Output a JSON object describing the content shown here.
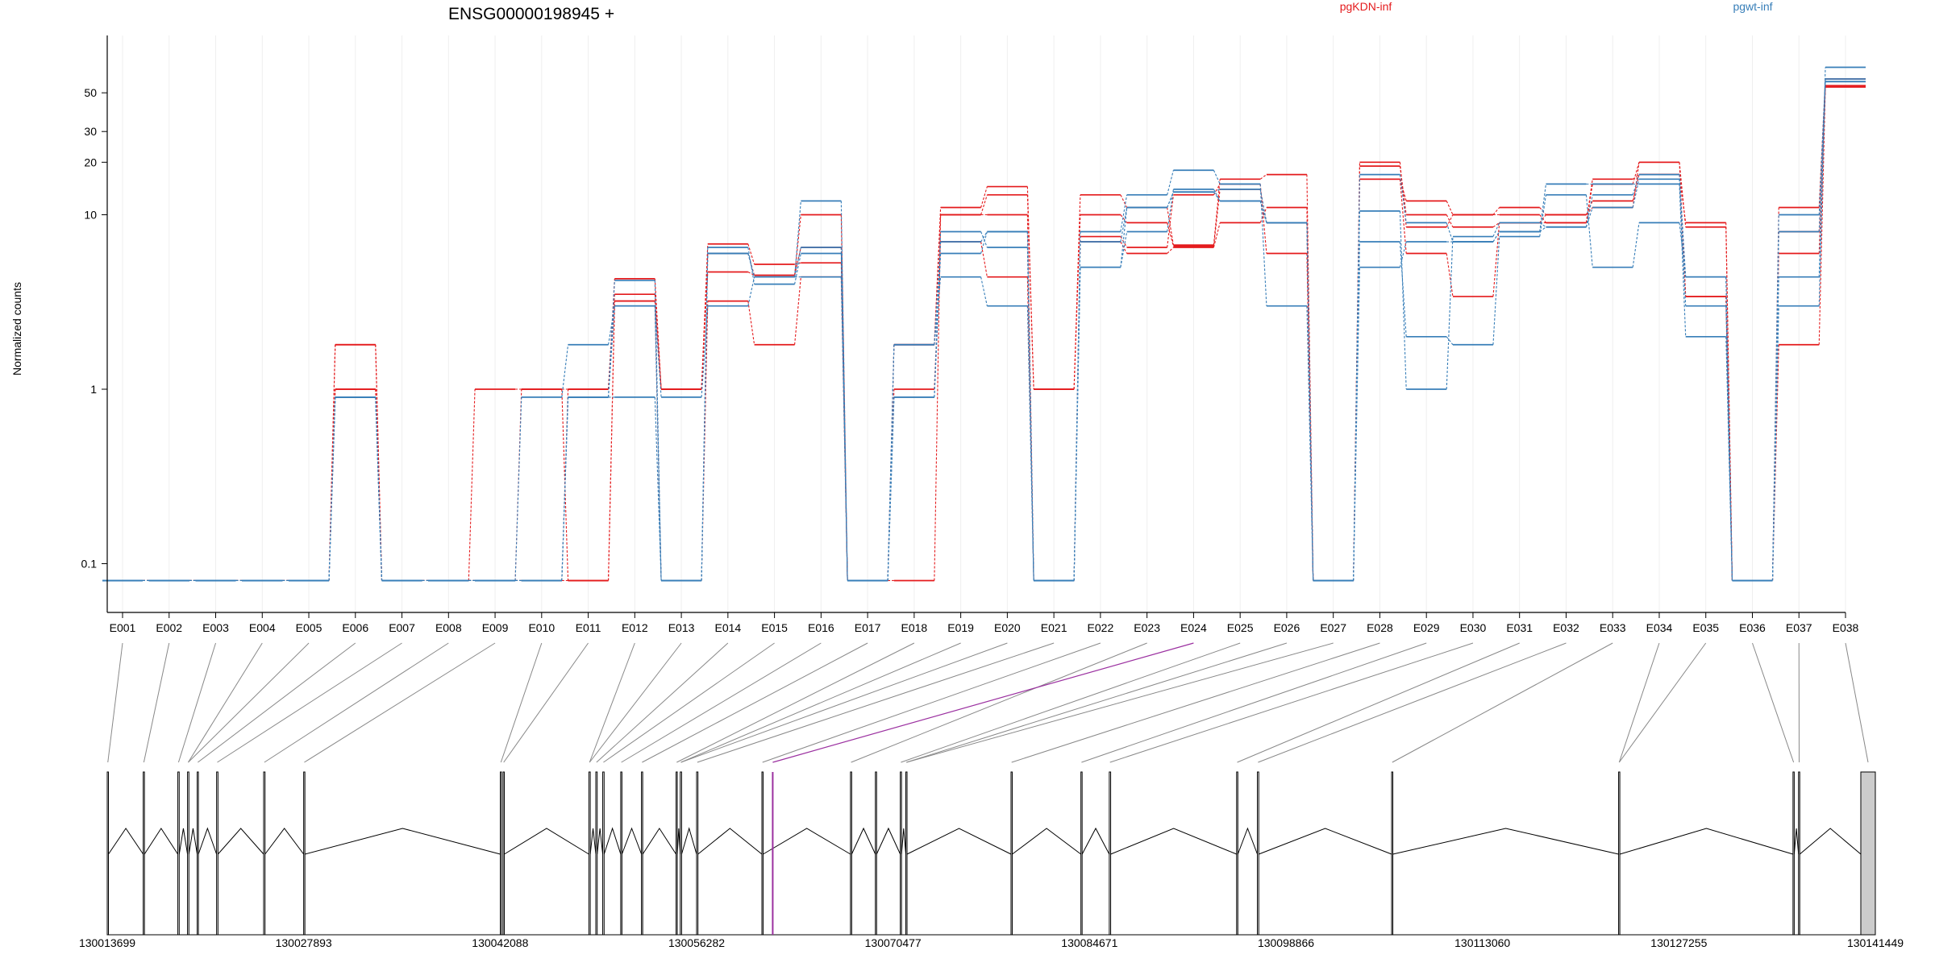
{
  "chart_data": {
    "type": "line",
    "title": "ENSG00000198945 +",
    "ylabel": "Normalized counts",
    "xlabel": "",
    "y_scale": "log",
    "yticks": [
      "0.1",
      "1",
      "10",
      "20",
      "30",
      "50"
    ],
    "ytick_values": [
      0.1,
      1,
      10,
      20,
      30,
      50
    ],
    "ylim": [
      0.065,
      100
    ],
    "grid": "vertical",
    "legend_placement": "top-right",
    "colors": {
      "pgKDN-inf": "#e41a1c",
      "pgwt-inf": "#377eb8"
    },
    "categories": [
      "E001",
      "E002",
      "E003",
      "E004",
      "E005",
      "E006",
      "E007",
      "E008",
      "E009",
      "E010",
      "E011",
      "E012",
      "E013",
      "E014",
      "E015",
      "E016",
      "E017",
      "E018",
      "E019",
      "E020",
      "E021",
      "E022",
      "E023",
      "E024",
      "E025",
      "E026",
      "E027",
      "E028",
      "E029",
      "E030",
      "E031",
      "E032",
      "E033",
      "E034",
      "E035",
      "E036",
      "E037",
      "E038"
    ],
    "series": [
      {
        "name": "pgKDN-inf",
        "group": "pgKDN-inf",
        "values": [
          0.08,
          0.08,
          0.08,
          0.08,
          0.08,
          1.8,
          0.08,
          0.08,
          1,
          1,
          1,
          4.3,
          1,
          6.8,
          5.2,
          5.3,
          0.08,
          1.8,
          11,
          14.5,
          1,
          13,
          11,
          6.7,
          16,
          17,
          0.08,
          20,
          8.5,
          10,
          10,
          9,
          15,
          20,
          8.5,
          0.08,
          11,
          60
        ]
      },
      {
        "name": "pgKDN-inf",
        "group": "pgKDN-inf",
        "values": [
          0.08,
          0.08,
          0.08,
          0.08,
          0.08,
          1.8,
          0.08,
          0.08,
          0.08,
          0.08,
          1,
          3.5,
          1,
          4.7,
          4.5,
          10,
          0.08,
          0.08,
          10,
          13,
          1,
          10,
          9,
          6.6,
          14,
          9,
          0.08,
          16,
          12,
          10,
          11,
          10,
          12,
          17,
          3.4,
          0.08,
          8,
          55
        ]
      },
      {
        "name": "pgKDN-inf",
        "group": "pgKDN-inf",
        "values": [
          0.08,
          0.08,
          0.08,
          0.08,
          0.08,
          1,
          0.08,
          0.08,
          0.08,
          0.08,
          0.08,
          3.2,
          0.08,
          3.2,
          1.8,
          4.4,
          0.08,
          1,
          7,
          4.4,
          0.08,
          7.5,
          6.5,
          13,
          15,
          6,
          0.08,
          16,
          6,
          3.4,
          9,
          9,
          16,
          17,
          9,
          0.08,
          6,
          54
        ]
      },
      {
        "name": "pgKDN-inf",
        "group": "pgKDN-inf",
        "values": [
          0.08,
          0.08,
          0.08,
          0.08,
          0.08,
          1,
          0.08,
          0.08,
          0.08,
          1,
          0.08,
          3.2,
          1,
          6,
          4.5,
          6.5,
          0.08,
          1.8,
          10,
          10,
          0.08,
          7,
          6,
          6.5,
          9,
          11,
          0.08,
          19,
          10,
          8.5,
          9,
          10,
          11,
          20,
          3.4,
          0.08,
          1.8,
          54
        ]
      },
      {
        "name": "pgwt-inf",
        "group": "pgwt-inf",
        "values": [
          0.08,
          0.08,
          0.08,
          0.08,
          0.08,
          0.9,
          0.08,
          0.08,
          0.08,
          0.9,
          1.8,
          3,
          0.9,
          3,
          4.4,
          12,
          0.08,
          1.8,
          7,
          8,
          0.08,
          8,
          13,
          18,
          15,
          3,
          0.08,
          17,
          9,
          7,
          8,
          15,
          15,
          15,
          2,
          0.08,
          3,
          70
        ]
      },
      {
        "name": "pgwt-inf",
        "group": "pgwt-inf",
        "values": [
          0.08,
          0.08,
          0.08,
          0.08,
          0.08,
          0.9,
          0.08,
          0.08,
          0.08,
          0.08,
          0.9,
          0.9,
          0.08,
          6,
          4.4,
          6.5,
          0.08,
          0.9,
          8,
          6.5,
          0.08,
          5,
          8,
          14,
          12,
          9,
          0.08,
          7,
          2,
          1.8,
          7.5,
          13,
          5,
          9,
          4.4,
          0.08,
          10,
          60
        ]
      },
      {
        "name": "pgwt-inf",
        "group": "pgwt-inf",
        "values": [
          0.08,
          0.08,
          0.08,
          0.08,
          0.08,
          0.9,
          0.08,
          0.08,
          0.08,
          0.08,
          0.9,
          4.2,
          0.08,
          6.5,
          4,
          6,
          0.08,
          1.8,
          4.4,
          3,
          0.08,
          7,
          11,
          13.5,
          14,
          9,
          0.08,
          10.5,
          1,
          7.5,
          9,
          8.5,
          11,
          16,
          3,
          0.08,
          4.4,
          58
        ]
      },
      {
        "name": "pgwt-inf",
        "group": "pgwt-inf",
        "values": [
          0.08,
          0.08,
          0.08,
          0.08,
          0.08,
          0.9,
          0.08,
          0.08,
          0.08,
          0.08,
          0.9,
          3,
          0.08,
          6,
          4.4,
          4.4,
          0.08,
          0.9,
          6,
          8,
          0.08,
          5,
          11,
          13.5,
          12,
          9,
          0.08,
          5,
          7,
          7,
          8,
          8.5,
          13,
          17,
          4.4,
          0.08,
          8,
          58
        ]
      }
    ],
    "legend": [
      "pgKDN-inf",
      "pgwt-inf"
    ],
    "gene_model": {
      "coordinate_labels": [
        "130013699",
        "130027893",
        "130042088",
        "130056282",
        "130070477",
        "130084671",
        "130098866",
        "130113060",
        "130127255",
        "130141449"
      ],
      "coordinate_ticks": [
        130013699,
        130027893,
        130042088,
        130056282,
        130070477,
        130084671,
        130098866,
        130113060,
        130127255,
        130141449
      ],
      "highlighted_exon": "E024",
      "highlight_color": "#9b30a0",
      "exons": [
        [
          130013699,
          130013760
        ],
        [
          130016300,
          130016380
        ],
        [
          130018800,
          130018900
        ],
        [
          130019500,
          130019600
        ],
        [
          130020200,
          130020260
        ],
        [
          130021600,
          130021700
        ],
        [
          130025000,
          130025100
        ],
        [
          130027893,
          130027960
        ],
        [
          130042100,
          130042160
        ],
        [
          130042300,
          130042360
        ],
        [
          130048500,
          130048600
        ],
        [
          130049000,
          130049100
        ],
        [
          130049500,
          130049600
        ],
        [
          130050800,
          130050880
        ],
        [
          130052300,
          130052380
        ],
        [
          130054800,
          130054880
        ],
        [
          130055100,
          130055200
        ],
        [
          130056282,
          130056380
        ],
        [
          130061000,
          130061070
        ],
        [
          130067400,
          130067480
        ],
        [
          130069200,
          130069260
        ],
        [
          130071000,
          130071080
        ],
        [
          130071400,
          130071480
        ],
        [
          130079000,
          130079080
        ],
        [
          130084050,
          130084130
        ],
        [
          130086100,
          130086200
        ],
        [
          130095300,
          130095380
        ],
        [
          130096800,
          130096900
        ],
        [
          130106500,
          130106580
        ],
        [
          130122900,
          130122980
        ],
        [
          130135500,
          130135580
        ],
        [
          130135900,
          130135980
        ],
        [
          130140400,
          130141449
        ]
      ]
    }
  }
}
